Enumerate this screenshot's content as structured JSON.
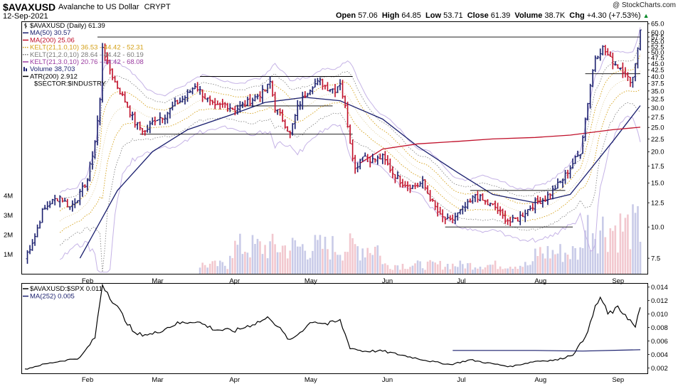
{
  "header": {
    "symbol": "$AVAXUSD",
    "description": "Avalanche to US Dollar",
    "exchange": "CRYPT",
    "date": "12-Sep-2021",
    "open_label": "Open",
    "open": "57.06",
    "high_label": "High",
    "high": "64.85",
    "low_label": "Low",
    "low": "53.71",
    "close_label": "Close",
    "close": "61.39",
    "volume_label": "Volume",
    "volume": "38.7K",
    "chg_label": "Chg",
    "chg": "+4.30 (+7.53%)",
    "chg_arrow": "▲",
    "watermark": "@ StockCharts.com"
  },
  "legend": [
    {
      "text": "$AVAXUSD (Daily) 61.39",
      "color": "#000000",
      "icon": "candle-icon"
    },
    {
      "text": "MA(50) 30.57",
      "color": "#1a1f6e",
      "icon": "line-icon"
    },
    {
      "text": "MA(200) 25.06",
      "color": "#c0102a",
      "icon": "line-icon"
    },
    {
      "text": "KELT(21,1.0,10) 36.53 - 44.42 - 52.31",
      "color": "#d4a017",
      "icon": "dotted-line-icon"
    },
    {
      "text": "KELT(21,2.0,10) 28.64 - 44.42 - 60.19",
      "color": "#7a7a7a",
      "icon": "dotted-line-icon"
    },
    {
      "text": "KELT(21,3.0,10) 20.76 - 44.42 - 68.08",
      "color": "#9a3aa0",
      "icon": "line-icon"
    },
    {
      "text": "Volume 38,703",
      "color": "#1a1f6e",
      "icon": "volume-bar-icon"
    },
    {
      "text": "ATR(200) 2.912",
      "color": "#000000",
      "icon": "line-icon"
    },
    {
      "text": "$SECTOR:$INDUSTRY",
      "color": "#000000",
      "icon": ""
    }
  ],
  "lower_legend": [
    {
      "text": "$AVAXUSD:$SPX 0.011",
      "color": "#000000"
    },
    {
      "text": "MA(252) 0.005",
      "color": "#1a1f6e"
    }
  ],
  "colors": {
    "up_bar": "#1a1f6e",
    "down_bar": "#c0102a",
    "ma50": "#1a1f6e",
    "ma200": "#c0102a",
    "kelt1": "#d4a017",
    "kelt2": "#8a8a8a",
    "kelt3": "#c5b3e6",
    "vol_up": "#c9cbe8",
    "vol_down": "#f2c8cf",
    "ratio": "#000000",
    "ratio_ma": "#1a1f6e",
    "sr_lines": "#000000"
  },
  "chart_data": [
    {
      "type": "ohlc",
      "yscale": "log",
      "ylim": [
        6.5,
        66
      ],
      "y_ticks": [
        "65.0",
        "60.0",
        "57.5",
        "55.0",
        "52.5",
        "50.0",
        "47.5",
        "45.0",
        "42.5",
        "40.0",
        "37.5",
        "35.0",
        "32.5",
        "30.0",
        "27.5",
        "25.0",
        "22.5",
        "20.0",
        "17.5",
        "15.0",
        "12.5",
        "10.0",
        "7.5"
      ],
      "y_tick_values": [
        65,
        60,
        57.5,
        55,
        52.5,
        50,
        47.5,
        45,
        42.5,
        40,
        37.5,
        35,
        32.5,
        30,
        27.5,
        25,
        22.5,
        20,
        17.5,
        15,
        12.5,
        10,
        7.5
      ],
      "x_ticks": [
        {
          "label": "Feb",
          "date": "2021-02-01"
        },
        {
          "label": "Mar",
          "date": "2021-03-01"
        },
        {
          "label": "Apr",
          "date": "2021-04-01"
        },
        {
          "label": "May",
          "date": "2021-05-01"
        },
        {
          "label": "Jun",
          "date": "2021-06-01"
        },
        {
          "label": "Jul",
          "date": "2021-07-01"
        },
        {
          "label": "Aug",
          "date": "2021-08-01"
        },
        {
          "label": "Sep",
          "date": "2021-09-01"
        }
      ],
      "date_range": [
        "2021-01-09",
        "2021-09-12"
      ],
      "close_path": [
        [
          "2021-01-09",
          7.5
        ],
        [
          "2021-01-13",
          9.2
        ],
        [
          "2021-01-16",
          11.5
        ],
        [
          "2021-01-19",
          12.5
        ],
        [
          "2021-01-23",
          13.2
        ],
        [
          "2021-01-27",
          12.0
        ],
        [
          "2021-01-31",
          13.5
        ],
        [
          "2021-02-03",
          15.5
        ],
        [
          "2021-02-06",
          22.0
        ],
        [
          "2021-02-08",
          32.0
        ],
        [
          "2021-02-09",
          53.0
        ],
        [
          "2021-02-11",
          45.0
        ],
        [
          "2021-02-14",
          38.0
        ],
        [
          "2021-02-18",
          32.0
        ],
        [
          "2021-02-22",
          26.0
        ],
        [
          "2021-02-26",
          24.0
        ],
        [
          "2021-03-02",
          27.0
        ],
        [
          "2021-03-06",
          28.0
        ],
        [
          "2021-03-10",
          31.0
        ],
        [
          "2021-03-14",
          33.0
        ],
        [
          "2021-03-18",
          37.0
        ],
        [
          "2021-03-22",
          33.0
        ],
        [
          "2021-03-26",
          30.0
        ],
        [
          "2021-03-30",
          31.0
        ],
        [
          "2021-04-03",
          29.5
        ],
        [
          "2021-04-07",
          31.0
        ],
        [
          "2021-04-11",
          33.0
        ],
        [
          "2021-04-15",
          35.0
        ],
        [
          "2021-04-17",
          38.0
        ],
        [
          "2021-04-19",
          30.0
        ],
        [
          "2021-04-22",
          27.0
        ],
        [
          "2021-04-25",
          23.5
        ],
        [
          "2021-04-28",
          30.0
        ],
        [
          "2021-05-01",
          34.0
        ],
        [
          "2021-05-04",
          37.0
        ],
        [
          "2021-05-07",
          38.0
        ],
        [
          "2021-05-10",
          36.0
        ],
        [
          "2021-05-13",
          35.5
        ],
        [
          "2021-05-15",
          38.0
        ],
        [
          "2021-05-17",
          30.0
        ],
        [
          "2021-05-19",
          22.0
        ],
        [
          "2021-05-21",
          17.0
        ],
        [
          "2021-05-24",
          19.5
        ],
        [
          "2021-05-28",
          18.5
        ],
        [
          "2021-06-01",
          19.0
        ],
        [
          "2021-06-05",
          16.5
        ],
        [
          "2021-06-09",
          15.0
        ],
        [
          "2021-06-13",
          14.5
        ],
        [
          "2021-06-17",
          15.0
        ],
        [
          "2021-06-21",
          12.5
        ],
        [
          "2021-06-24",
          11.0
        ],
        [
          "2021-06-28",
          10.5
        ],
        [
          "2021-07-02",
          11.5
        ],
        [
          "2021-07-06",
          12.5
        ],
        [
          "2021-07-08",
          13.5
        ],
        [
          "2021-07-12",
          12.5
        ],
        [
          "2021-07-16",
          12.0
        ],
        [
          "2021-07-19",
          11.0
        ],
        [
          "2021-07-22",
          10.5
        ],
        [
          "2021-07-25",
          10.8
        ],
        [
          "2021-07-28",
          11.5
        ],
        [
          "2021-08-01",
          12.5
        ],
        [
          "2021-08-05",
          13.0
        ],
        [
          "2021-08-08",
          14.0
        ],
        [
          "2021-08-12",
          15.5
        ],
        [
          "2021-08-16",
          18.0
        ],
        [
          "2021-08-19",
          20.0
        ],
        [
          "2021-08-21",
          27.0
        ],
        [
          "2021-08-23",
          37.0
        ],
        [
          "2021-08-25",
          48.0
        ],
        [
          "2021-08-28",
          52.0
        ],
        [
          "2021-08-31",
          47.0
        ],
        [
          "2021-09-03",
          44.0
        ],
        [
          "2021-09-06",
          42.0
        ],
        [
          "2021-09-08",
          37.0
        ],
        [
          "2021-09-10",
          45.0
        ],
        [
          "2021-09-12",
          61.39
        ]
      ],
      "series": [
        {
          "name": "MA(50)",
          "points": [
            [
              "2021-01-31",
              7.5
            ],
            [
              "2021-02-15",
              14.0
            ],
            [
              "2021-03-01",
              20.0
            ],
            [
              "2021-03-15",
              24.5
            ],
            [
              "2021-04-01",
              28.0
            ],
            [
              "2021-04-15",
              31.5
            ],
            [
              "2021-05-01",
              33.0
            ],
            [
              "2021-05-15",
              32.0
            ],
            [
              "2021-06-01",
              27.0
            ],
            [
              "2021-06-15",
              21.0
            ],
            [
              "2021-07-01",
              16.5
            ],
            [
              "2021-07-15",
              13.5
            ],
            [
              "2021-08-01",
              12.5
            ],
            [
              "2021-08-15",
              13.5
            ],
            [
              "2021-09-01",
              22.0
            ],
            [
              "2021-09-12",
              30.57
            ]
          ]
        },
        {
          "name": "MA(200)",
          "points": [
            [
              "2021-05-23",
              18.0
            ],
            [
              "2021-06-01",
              20.5
            ],
            [
              "2021-06-15",
              21.5
            ],
            [
              "2021-07-01",
              22.0
            ],
            [
              "2021-07-15",
              22.5
            ],
            [
              "2021-08-01",
              22.8
            ],
            [
              "2021-08-15",
              23.3
            ],
            [
              "2021-09-01",
              24.5
            ],
            [
              "2021-09-12",
              25.06
            ]
          ]
        }
      ],
      "volume_axis": {
        "ticks": [
          "4M",
          "3M",
          "2M",
          "1M"
        ],
        "tick_values": [
          4000000,
          3000000,
          2000000,
          1000000
        ]
      },
      "support_resistance": [
        {
          "from": "2021-02-07",
          "to": "2021-09-12",
          "value": 57.5
        },
        {
          "from": "2021-03-20",
          "to": "2021-05-20",
          "value": 40.0
        },
        {
          "from": "2021-02-24",
          "to": "2021-05-20",
          "value": 23.5
        },
        {
          "from": "2021-04-03",
          "to": "2021-05-12",
          "value": 30.5
        },
        {
          "from": "2021-06-26",
          "to": "2021-08-16",
          "value": 10.0
        },
        {
          "from": "2021-07-06",
          "to": "2021-08-13",
          "value": 14.0
        },
        {
          "from": "2021-08-21",
          "to": "2021-09-12",
          "value": 41.0
        }
      ]
    },
    {
      "type": "line",
      "title": "$AVAXUSD:$SPX 0.011",
      "ylim": [
        0.0012,
        0.0145
      ],
      "y_ticks": [
        "0.014",
        "0.012",
        "0.010",
        "0.008",
        "0.006",
        "0.004",
        "0.002"
      ],
      "y_tick_values": [
        0.014,
        0.012,
        0.01,
        0.008,
        0.006,
        0.004,
        0.002
      ],
      "series": [
        {
          "name": "$AVAXUSD:$SPX",
          "points": [
            [
              "2021-01-09",
              0.0018
            ],
            [
              "2021-01-16",
              0.0025
            ],
            [
              "2021-01-23",
              0.003
            ],
            [
              "2021-01-31",
              0.0035
            ],
            [
              "2021-02-06",
              0.0065
            ],
            [
              "2021-02-09",
              0.0145
            ],
            [
              "2021-02-14",
              0.0115
            ],
            [
              "2021-02-22",
              0.007
            ],
            [
              "2021-03-01",
              0.007
            ],
            [
              "2021-03-10",
              0.0085
            ],
            [
              "2021-03-18",
              0.009
            ],
            [
              "2021-03-26",
              0.0077
            ],
            [
              "2021-04-03",
              0.0075
            ],
            [
              "2021-04-10",
              0.0085
            ],
            [
              "2021-04-17",
              0.0095
            ],
            [
              "2021-04-25",
              0.006
            ],
            [
              "2021-05-04",
              0.009
            ],
            [
              "2021-05-10",
              0.0085
            ],
            [
              "2021-05-15",
              0.009
            ],
            [
              "2021-05-19",
              0.005
            ],
            [
              "2021-05-24",
              0.0045
            ],
            [
              "2021-06-01",
              0.0045
            ],
            [
              "2021-06-10",
              0.0038
            ],
            [
              "2021-06-20",
              0.003
            ],
            [
              "2021-06-28",
              0.0025
            ],
            [
              "2021-07-06",
              0.0032
            ],
            [
              "2021-07-12",
              0.0028
            ],
            [
              "2021-07-22",
              0.0022
            ],
            [
              "2021-08-01",
              0.003
            ],
            [
              "2021-08-10",
              0.0032
            ],
            [
              "2021-08-16",
              0.004
            ],
            [
              "2021-08-20",
              0.006
            ],
            [
              "2021-08-23",
              0.0085
            ],
            [
              "2021-08-25",
              0.011
            ],
            [
              "2021-08-27",
              0.0125
            ],
            [
              "2021-08-30",
              0.01
            ],
            [
              "2021-09-03",
              0.0108
            ],
            [
              "2021-09-06",
              0.01
            ],
            [
              "2021-09-10",
              0.008
            ],
            [
              "2021-09-12",
              0.011
            ]
          ]
        },
        {
          "name": "MA(252)",
          "points": [
            [
              "2021-06-29",
              0.0046
            ],
            [
              "2021-08-01",
              0.0046
            ],
            [
              "2021-08-20",
              0.0045
            ],
            [
              "2021-09-12",
              0.0047
            ]
          ]
        }
      ]
    }
  ]
}
